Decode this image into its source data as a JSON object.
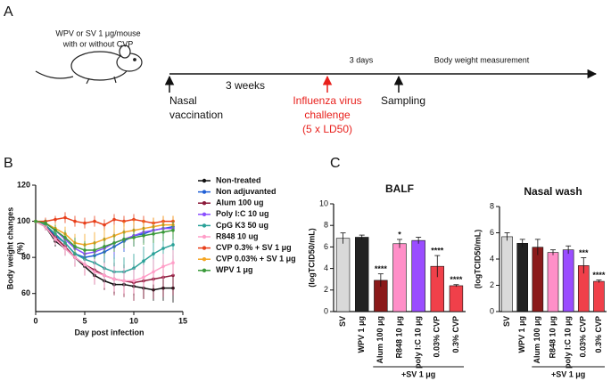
{
  "panel_labels": [
    "A",
    "B",
    "C"
  ],
  "timeline": {
    "injection": [
      "WPV or SV 1 μg/mouse",
      "with or without CVP"
    ],
    "vaccination": [
      "Nasal",
      "vaccination"
    ],
    "challenge": [
      "Influenza virus",
      "challenge",
      "(5 x LD50)"
    ],
    "sampling": "Sampling",
    "intervals": [
      "3 weeks",
      "3 days"
    ],
    "measurement": "Body weight measurement"
  },
  "chart_data": [
    {
      "type": "line",
      "xlabel": "Day post infection",
      "ylabel": [
        "Body weight changes",
        "(%)"
      ],
      "x": [
        0,
        1,
        2,
        3,
        4,
        5,
        6,
        7,
        8,
        9,
        10,
        11,
        12,
        13,
        14
      ],
      "xlim": [
        0,
        15
      ],
      "xticks": [
        0,
        5,
        10,
        15
      ],
      "ylim": [
        50,
        120
      ],
      "yticks": [
        60,
        80,
        100,
        120
      ],
      "series": [
        {
          "name": "Non-treated",
          "color": "#111111",
          "values": [
            100,
            97,
            89,
            85,
            80,
            75,
            70,
            67,
            65,
            65,
            64,
            63,
            62,
            63,
            63
          ],
          "errors": [
            1,
            2,
            3,
            4,
            5,
            5,
            5,
            5,
            5,
            5,
            5,
            6,
            6,
            7,
            8
          ]
        },
        {
          "name": "Non adjuvanted",
          "color": "#1f5fd6",
          "values": [
            100,
            98,
            92,
            88,
            82,
            80,
            81,
            83,
            86,
            89,
            92,
            93,
            95,
            96,
            97
          ],
          "errors": [
            1,
            2,
            3,
            4,
            5,
            6,
            6,
            7,
            7,
            6,
            6,
            5,
            5,
            4,
            4
          ]
        },
        {
          "name": "Alum 100 ug",
          "color": "#8b1a3a",
          "values": [
            100,
            97,
            91,
            86,
            80,
            76,
            73,
            70,
            68,
            67,
            66,
            67,
            68,
            69,
            70
          ],
          "errors": [
            1,
            2,
            3,
            4,
            5,
            6,
            7,
            8,
            9,
            9,
            10,
            10,
            11,
            11,
            11
          ]
        },
        {
          "name": "Poly I:C 10 ug",
          "color": "#8a4fff",
          "values": [
            100,
            99,
            95,
            90,
            85,
            82,
            83,
            85,
            88,
            90,
            92,
            94,
            95,
            96,
            96
          ],
          "errors": [
            1,
            2,
            3,
            4,
            5,
            6,
            6,
            6,
            6,
            6,
            5,
            5,
            5,
            4,
            4
          ]
        },
        {
          "name": "CpG K3 50 ug",
          "color": "#2aa198",
          "values": [
            100,
            98,
            93,
            88,
            82,
            79,
            77,
            74,
            72,
            72,
            74,
            78,
            82,
            85,
            87
          ],
          "errors": [
            1,
            2,
            3,
            4,
            5,
            6,
            7,
            8,
            8,
            8,
            8,
            8,
            8,
            8,
            8
          ]
        },
        {
          "name": "R848 10 ug",
          "color": "#ff9ec8",
          "values": [
            100,
            97,
            90,
            85,
            80,
            76,
            72,
            70,
            68,
            67,
            67,
            69,
            72,
            75,
            77
          ],
          "errors": [
            1,
            2,
            3,
            4,
            5,
            6,
            7,
            7,
            7,
            7,
            7,
            7,
            7,
            7,
            7
          ]
        },
        {
          "name": "CVP 0.3% + SV 1 μg",
          "color": "#e8401c",
          "values": [
            100,
            100,
            101,
            102,
            100,
            99,
            100,
            98,
            101,
            100,
            101,
            100,
            99,
            100,
            100
          ],
          "errors": [
            1,
            2,
            2,
            3,
            3,
            3,
            3,
            3,
            3,
            3,
            3,
            3,
            3,
            3,
            3
          ]
        },
        {
          "name": "CVP 0.03% + SV 1 μg",
          "color": "#f5a623",
          "values": [
            100,
            99,
            96,
            93,
            88,
            87,
            88,
            90,
            92,
            94,
            95,
            96,
            97,
            98,
            98
          ],
          "errors": [
            1,
            2,
            3,
            4,
            5,
            6,
            6,
            6,
            6,
            6,
            6,
            5,
            5,
            5,
            5
          ]
        },
        {
          "name": "WPV 1 μg",
          "color": "#3a9a3a",
          "values": [
            100,
            99,
            95,
            91,
            86,
            84,
            84,
            86,
            88,
            90,
            91,
            92,
            93,
            94,
            95
          ],
          "errors": [
            1,
            2,
            3,
            4,
            5,
            5,
            5,
            5,
            5,
            5,
            5,
            5,
            5,
            5,
            5
          ]
        }
      ]
    },
    {
      "type": "bar",
      "title": "BALF",
      "ylabel": "(logTCID50/mL)",
      "group_label": "+SV 1 μg",
      "categories": [
        "SV",
        "WPV 1 μg",
        "Alum 100 μg",
        "R848 10 μg",
        "poly I:C 10 μg",
        "0.03% CVP",
        "0.3% CVP"
      ],
      "values": [
        6.8,
        6.9,
        2.9,
        6.3,
        6.6,
        4.2,
        2.4
      ],
      "errors": [
        0.5,
        0.2,
        0.6,
        0.4,
        0.3,
        1.0,
        0.1
      ],
      "colors": [
        "#d9d9d9",
        "#222222",
        "#8b1a1a",
        "#ff8fc8",
        "#9a4dff",
        "#f0404a",
        "#f0404a"
      ],
      "annotations": [
        null,
        null,
        "****",
        "*",
        null,
        "****",
        "****"
      ],
      "ylim": [
        0,
        10
      ],
      "yticks": [
        0,
        2,
        4,
        6,
        8,
        10
      ]
    },
    {
      "type": "bar",
      "title": "Nasal wash",
      "ylabel": "(logTCID50/mL)",
      "group_label": "+SV 1 μg",
      "categories": [
        "SV",
        "WPV 1 μg",
        "Alum 100 μg",
        "R848 10 μg",
        "poly I:C 10 μg",
        "0.03% CVP",
        "0.3% CVP"
      ],
      "values": [
        5.7,
        5.2,
        4.9,
        4.5,
        4.7,
        3.5,
        2.3
      ],
      "errors": [
        0.3,
        0.3,
        0.6,
        0.2,
        0.3,
        0.6,
        0.1
      ],
      "colors": [
        "#d9d9d9",
        "#222222",
        "#8b1a1a",
        "#ff8fc8",
        "#9a4dff",
        "#f0404a",
        "#f0404a"
      ],
      "annotations": [
        null,
        null,
        null,
        null,
        null,
        "***",
        "****"
      ],
      "ylim": [
        0,
        8
      ],
      "yticks": [
        0,
        2,
        4,
        6,
        8
      ]
    }
  ]
}
